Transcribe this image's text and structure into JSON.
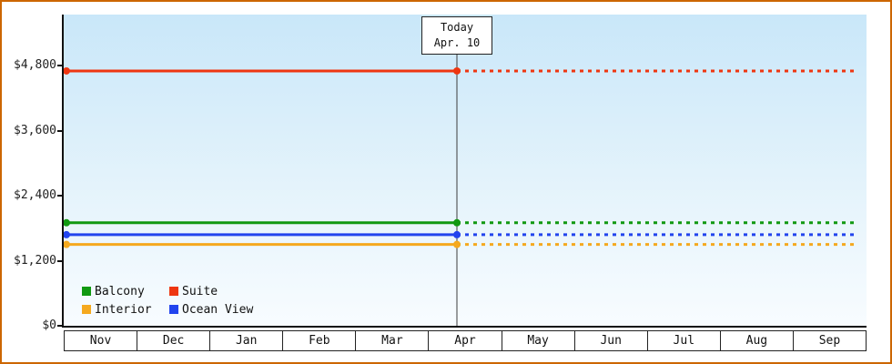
{
  "chart_data": {
    "type": "line",
    "description": "Cruise cabin price history by category, solid until today then dotted projection",
    "x_categories": [
      "Nov",
      "Dec",
      "Jan",
      "Feb",
      "Mar",
      "Apr",
      "May",
      "Jun",
      "Jul",
      "Aug",
      "Sep"
    ],
    "y_axis": {
      "min": 0,
      "max": 4800,
      "tick_values": [
        0,
        1200,
        2400,
        3600,
        4800
      ],
      "tick_labels": [
        "$0",
        "$1,200",
        "$2,400",
        "$3,600",
        "$4,800"
      ]
    },
    "today": {
      "line1": "Today",
      "line2": "Apr. 10",
      "x_category": "Apr"
    },
    "series": [
      {
        "name": "Suite",
        "color": "#ee3611",
        "value": 4700
      },
      {
        "name": "Balcony",
        "color": "#119911",
        "value": 1900
      },
      {
        "name": "Ocean View",
        "color": "#2244ee",
        "value": 1680
      },
      {
        "name": "Interior",
        "color": "#f5a91f",
        "value": 1500
      }
    ],
    "legend_rows": [
      [
        "Balcony",
        "Suite"
      ],
      [
        "Interior",
        "Ocean View"
      ]
    ],
    "style_notes": {
      "solid_before_today": true,
      "dotted_after_today": true,
      "frame_border_color": "#cc6600"
    }
  }
}
